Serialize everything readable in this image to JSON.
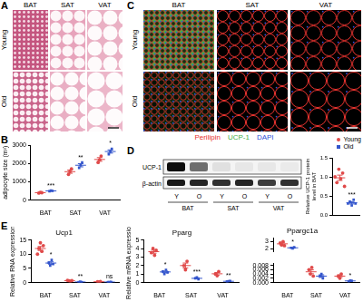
{
  "panel_A": {
    "label": "A",
    "columns": [
      "BAT",
      "SAT",
      "VAT"
    ],
    "rows": [
      "Young",
      "Old"
    ]
  },
  "panel_C": {
    "label": "C",
    "columns": [
      "BAT",
      "SAT",
      "VAT"
    ],
    "rows": [
      "Young",
      "Old"
    ],
    "channels": [
      {
        "name": "Perilipin",
        "color": "#e8322e"
      },
      {
        "name": "UCP-1",
        "color": "#3fae49"
      },
      {
        "name": "DAPI",
        "color": "#2f4fd8"
      }
    ]
  },
  "panel_D_blot": {
    "label": "D",
    "rows": [
      "UCP-1",
      "β-actin"
    ],
    "lanes": [
      "Y",
      "O",
      "Y",
      "O",
      "Y",
      "O"
    ],
    "groups": [
      "BAT",
      "SAT",
      "VAT"
    ]
  },
  "chart_data": [
    {
      "type": "scatter",
      "panel": "B",
      "y_label": "adipocyte size (m²)",
      "categories": [
        "BAT",
        "SAT",
        "VAT"
      ],
      "ylim": [
        0,
        3000
      ],
      "yticks": [
        0,
        1000,
        2000,
        3000
      ],
      "grid": false,
      "significance": [
        "***",
        "**",
        "*"
      ],
      "series": [
        {
          "name": "Young",
          "color": "#e04a4a",
          "marker": "circle",
          "values": [
            [
              380,
              420,
              400
            ],
            [
              1400,
              1550,
              1700
            ],
            [
              2050,
              2200,
              2400
            ]
          ],
          "mean": [
            400,
            1550,
            2217
          ],
          "error": [
            12,
            87,
            100
          ]
        },
        {
          "name": "Old",
          "color": "#3355cc",
          "marker": "square",
          "values": [
            [
              480,
              520,
              500
            ],
            [
              1750,
              1900,
              2050
            ],
            [
              2500,
              2650,
              2800
            ]
          ],
          "mean": [
            500,
            1900,
            2650
          ],
          "error": [
            12,
            87,
            87
          ]
        }
      ]
    },
    {
      "type": "scatter",
      "y_label": [
        "Relative UCP-1 protein",
        "level in BAT"
      ],
      "categories": [
        null
      ],
      "tick_labels": "y",
      "legend": "top-right",
      "ylim": [
        0,
        1.5
      ],
      "yticks": [
        {
          "value": 0,
          "label": "0.0"
        },
        0.5,
        {
          "value": 1,
          "label": "1.0"
        },
        1.5
      ],
      "grid": false,
      "significance": [
        "***"
      ],
      "series": [
        {
          "name": "Young",
          "color": "#e04a4a",
          "marker": "circle",
          "values": [
            [
              1.0,
              0.85,
              1.2,
              0.95,
              1.1,
              0.75
            ]
          ],
          "mean": [
            0.975
          ],
          "error": [
            0.07
          ]
        },
        {
          "name": "Old",
          "color": "#3355cc",
          "marker": "square",
          "values": [
            [
              0.3,
              0.35,
              0.25,
              0.4,
              0.3
            ]
          ],
          "mean": [
            0.32
          ],
          "error": [
            0.03
          ]
        }
      ]
    },
    {
      "type": "scatter",
      "panel": "E",
      "title": "Ucp1",
      "y_label": "Relative RNA expression",
      "categories": [
        "BAT",
        "SAT",
        "VAT"
      ],
      "ylim": [
        0,
        15
      ],
      "yticks": [
        0,
        5,
        10,
        15
      ],
      "grid": false,
      "significance": [
        "*",
        "**",
        "ns"
      ],
      "series": [
        {
          "name": "Young",
          "color": "#e04a4a",
          "marker": "circle",
          "values": [
            [
              10,
              12,
              14,
              11,
              13
            ],
            [
              0.8,
              0.6,
              0.5,
              0.7
            ],
            [
              0.3,
              0.2,
              0.4
            ]
          ],
          "mean": [
            12,
            0.65,
            0.3
          ],
          "error": [
            0.7,
            0.06,
            0.06
          ]
        },
        {
          "name": "Old",
          "color": "#3355cc",
          "marker": "square",
          "values": [
            [
              7,
              6,
              8,
              6.5
            ],
            [
              0.2,
              0.3,
              0.15
            ],
            [
              0.2,
              0.15,
              0.25
            ]
          ],
          "mean": [
            6.875,
            0.217,
            0.2
          ],
          "error": [
            0.43,
            0.04,
            0.03
          ]
        }
      ]
    },
    {
      "type": "scatter",
      "title": "Pparg",
      "y_label": "Relative mRNA expression",
      "categories": [
        "BAT",
        "SAT",
        "VAT"
      ],
      "ylim": [
        0,
        5
      ],
      "yticks": [
        0,
        1,
        2,
        3,
        4,
        5
      ],
      "grid": false,
      "significance": [
        "*",
        "***",
        "**"
      ],
      "series": [
        {
          "name": "Young",
          "color": "#e04a4a",
          "marker": "circle",
          "values": [
            [
              3.5,
              4.0,
              3.2,
              3.8
            ],
            [
              2.0,
              1.5,
              2.5
            ],
            [
              1.0,
              0.8,
              1.3
            ]
          ],
          "mean": [
            3.625,
            2.0,
            1.033
          ],
          "error": [
            0.18,
            0.29,
            0.15
          ]
        },
        {
          "name": "Old",
          "color": "#3355cc",
          "marker": "square",
          "values": [
            [
              1.3,
              1.0,
              1.5,
              1.2
            ],
            [
              0.5,
              0.6,
              0.4
            ],
            [
              0.1,
              0.15,
              0.2
            ]
          ],
          "mean": [
            1.25,
            0.5,
            0.15
          ],
          "error": [
            0.1,
            0.06,
            0.03
          ]
        }
      ]
    },
    {
      "type": "scatter",
      "title": "Ppargc1a",
      "categories": [
        "BAT",
        "SAT",
        "VAT"
      ],
      "grid": false,
      "significance": [
        "*",
        null,
        "*"
      ],
      "segments": [
        {
          "ylim": [
            1.5,
            3.5
          ],
          "yticks": [
            2,
            3
          ]
        },
        {
          "ylim": [
            0,
            0.009
          ],
          "yticks": [
            {
              "value": 0,
              "label": "0.000"
            },
            0.002,
            0.004,
            0.006,
            0.008
          ]
        }
      ],
      "series": [
        {
          "name": "Young",
          "color": "#e04a4a",
          "marker": "circle",
          "values": [
            [
              2.8,
              2.5,
              3.0,
              2.4
            ],
            [
              0.006,
              0.004,
              0.007,
              0.003
            ],
            [
              0.003,
              0.002,
              0.004
            ]
          ],
          "mean": [
            2.675,
            0.005,
            0.003
          ],
          "error": [
            0.14,
            0.0009,
            0.0006
          ]
        },
        {
          "name": "Old",
          "color": "#3355cc",
          "marker": "square",
          "values": [
            [
              2.1,
              2.0,
              2.2
            ],
            [
              0.003,
              0.004,
              0.002
            ],
            [
              0.0005,
              0.001,
              0.0008
            ]
          ],
          "mean": [
            2.1,
            0.003,
            0.00077
          ],
          "error": [
            0.06,
            0.0006,
            0.00015
          ]
        }
      ]
    }
  ]
}
